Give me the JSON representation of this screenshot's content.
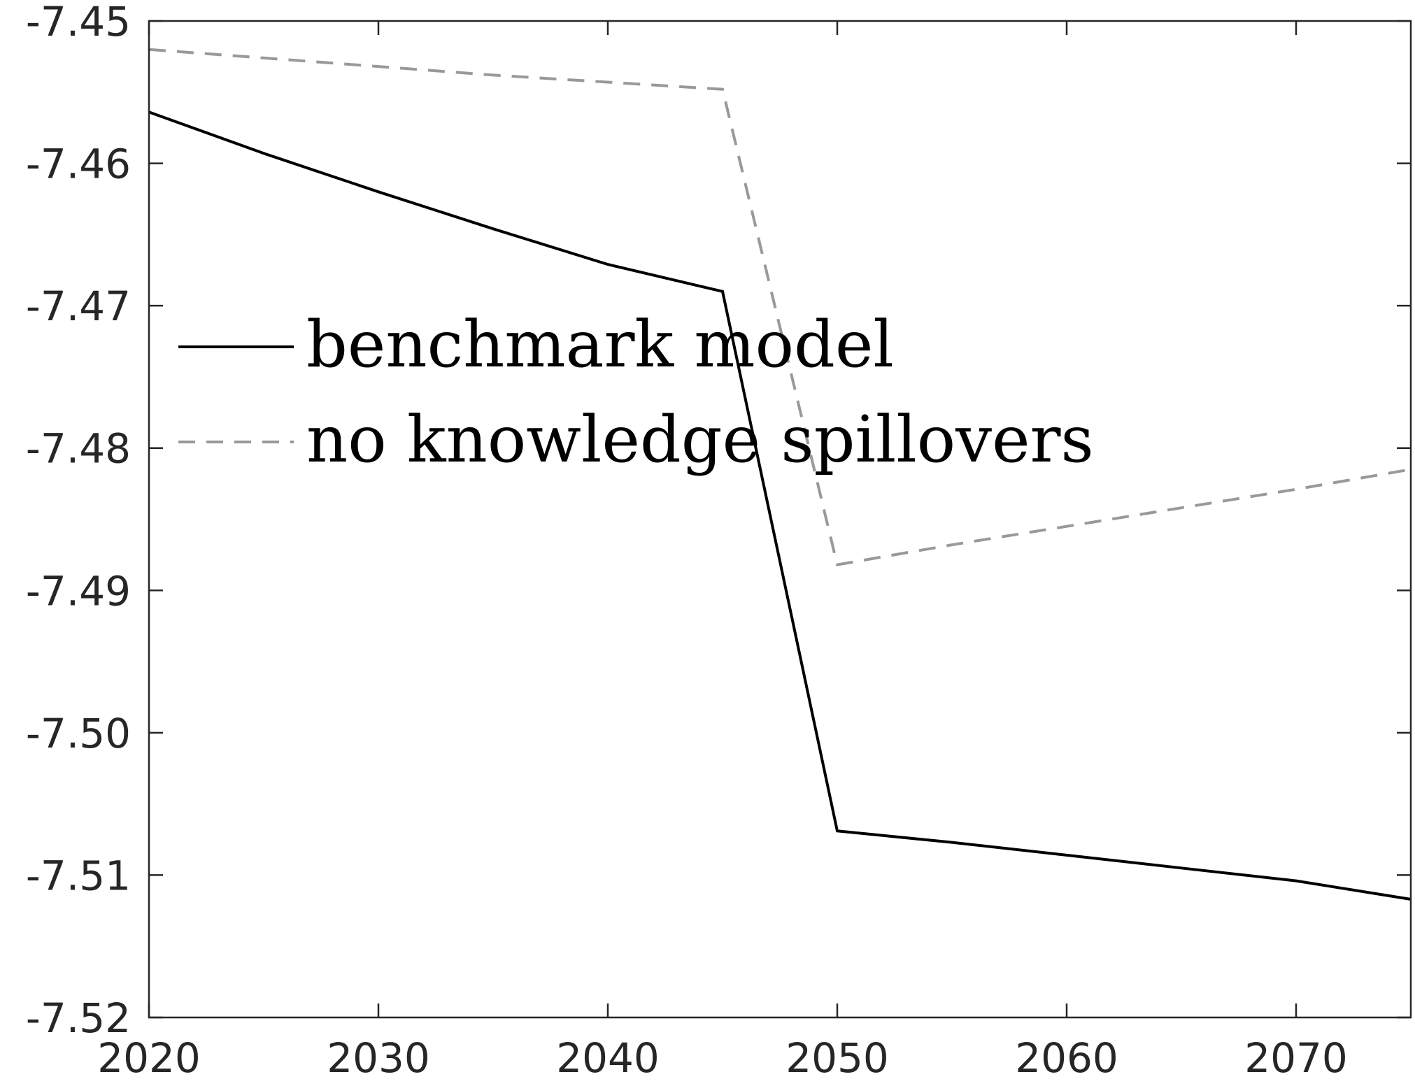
{
  "chart_data": {
    "type": "line",
    "title": "",
    "xlabel": "",
    "ylabel": "",
    "xlim": [
      2020,
      2075
    ],
    "ylim": [
      -7.52,
      -7.45
    ],
    "x_ticks": [
      2020,
      2030,
      2040,
      2050,
      2060,
      2070
    ],
    "y_ticks": [
      -7.45,
      -7.46,
      -7.47,
      -7.48,
      -7.49,
      -7.5,
      -7.51,
      -7.52
    ],
    "x_tick_labels": [
      "2020",
      "2030",
      "2040",
      "2050",
      "2060",
      "2070"
    ],
    "y_tick_labels": [
      "-7.45",
      "-7.46",
      "-7.47",
      "-7.48",
      "-7.49",
      "-7.50",
      "-7.51",
      "-7.52"
    ],
    "grid": false,
    "legend_position": "center-left",
    "series": [
      {
        "name": "benchmark model",
        "color": "#000000",
        "dash": "solid",
        "x": [
          2020,
          2025,
          2030,
          2035,
          2040,
          2045,
          2050,
          2055,
          2060,
          2065,
          2070,
          2075
        ],
        "y": [
          -7.4564,
          -7.4593,
          -7.462,
          -7.4646,
          -7.4671,
          -7.469,
          -7.5069,
          -7.5077,
          -7.5086,
          -7.5095,
          -7.5104,
          -7.5117
        ]
      },
      {
        "name": "no knowledge spillovers",
        "color": "#999999",
        "dash": "dashed",
        "x": [
          2020,
          2025,
          2030,
          2035,
          2040,
          2045,
          2050,
          2055,
          2060,
          2065,
          2070,
          2075
        ],
        "y": [
          -7.452,
          -7.4526,
          -7.4532,
          -7.4538,
          -7.4543,
          -7.4548,
          -7.4882,
          -7.4868,
          -7.4855,
          -7.4842,
          -7.4829,
          -7.4815
        ]
      }
    ]
  }
}
